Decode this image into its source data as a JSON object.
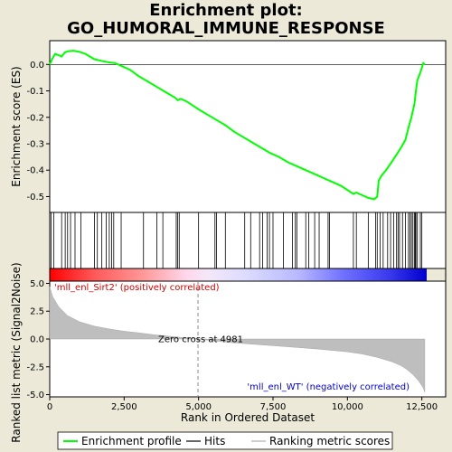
{
  "chart_data": {
    "type": "line",
    "title_line1": "Enrichment plot:",
    "title_line2": "GO_HUMORAL_IMMUNE_RESPONSE",
    "xlabel": "Rank in Ordered Dataset",
    "ylabel_top": "Enrichment score (ES)",
    "ylabel_bottom": "Ranked list metric (Signal2Noise)",
    "xlim": [
      0,
      13300
    ],
    "es_ylim": [
      -0.56,
      0.09
    ],
    "metric_ylim": [
      -5.2,
      5.2
    ],
    "x_ticks": [
      0,
      2500,
      5000,
      7500,
      10000,
      12500
    ],
    "x_tick_labels": [
      "0",
      "2,500",
      "5,000",
      "7,500",
      "10,000",
      "12,500"
    ],
    "es_ticks": [
      0.0,
      -0.1,
      -0.2,
      -0.3,
      -0.4,
      -0.5
    ],
    "es_tick_labels": [
      "0.0",
      "-0.1",
      "-0.2",
      "-0.3",
      "-0.4",
      "-0.5"
    ],
    "metric_ticks": [
      5.0,
      2.5,
      0.0,
      -2.5,
      -5.0
    ],
    "metric_tick_labels": [
      "5.0",
      "2.5",
      "0.0",
      "-2.5",
      "-5.0"
    ],
    "es_curve": {
      "x": [
        0,
        80,
        180,
        300,
        400,
        500,
        600,
        800,
        1000,
        1200,
        1500,
        1800,
        2000,
        2200,
        2400,
        2700,
        3000,
        3300,
        3600,
        3900,
        4200,
        4300,
        4400,
        4600,
        4800,
        5000,
        5300,
        5600,
        5900,
        6200,
        6500,
        6800,
        7100,
        7400,
        7700,
        8000,
        8300,
        8600,
        8900,
        9200,
        9400,
        9600,
        9800,
        10000,
        10200,
        10300,
        10500,
        10700,
        10900,
        11000,
        11050,
        11150,
        11300,
        11450,
        11600,
        11800,
        11950,
        12050,
        12150,
        12250,
        12300,
        12350,
        12450,
        12550,
        12600
      ],
      "y": [
        0.0,
        0.02,
        0.04,
        0.035,
        0.03,
        0.045,
        0.05,
        0.052,
        0.048,
        0.04,
        0.02,
        0.012,
        0.008,
        0.005,
        -0.005,
        -0.02,
        -0.045,
        -0.065,
        -0.085,
        -0.105,
        -0.125,
        -0.135,
        -0.13,
        -0.14,
        -0.155,
        -0.17,
        -0.19,
        -0.21,
        -0.23,
        -0.255,
        -0.275,
        -0.295,
        -0.315,
        -0.335,
        -0.35,
        -0.37,
        -0.385,
        -0.4,
        -0.415,
        -0.43,
        -0.44,
        -0.45,
        -0.46,
        -0.475,
        -0.49,
        -0.485,
        -0.495,
        -0.505,
        -0.51,
        -0.5,
        -0.44,
        -0.42,
        -0.4,
        -0.375,
        -0.35,
        -0.315,
        -0.285,
        -0.24,
        -0.2,
        -0.15,
        -0.1,
        -0.06,
        -0.03,
        0.005,
        0.0
      ]
    },
    "hits": [
      50,
      140,
      400,
      520,
      600,
      700,
      850,
      1050,
      1500,
      1600,
      1750,
      1900,
      2000,
      2080,
      2150,
      2400,
      3150,
      3600,
      3800,
      4250,
      4300,
      4350,
      5000,
      5550,
      5600,
      5900,
      6550,
      6750,
      7050,
      7150,
      7300,
      7380,
      7500,
      7850,
      8150,
      8250,
      8300,
      8600,
      8700,
      8900,
      9050,
      9350,
      9400,
      10200,
      10300,
      10700,
      10950,
      11000,
      11100,
      11200,
      11350,
      11450,
      11550,
      11650,
      11700,
      11750,
      11850,
      11950,
      12050,
      12100,
      12150,
      12200,
      12250,
      12280,
      12300,
      12350,
      12450,
      12500
    ],
    "metric_curve": {
      "x": [
        0,
        100,
        300,
        600,
        1000,
        1500,
        2000,
        2500,
        3000,
        3500,
        4000,
        4500,
        4981,
        5500,
        6000,
        7000,
        8000,
        9000,
        10000,
        10500,
        11000,
        11500,
        11800,
        12000,
        12200,
        12400,
        12550,
        12600
      ],
      "y": [
        4.7,
        3.8,
        2.9,
        2.1,
        1.55,
        1.15,
        0.9,
        0.7,
        0.55,
        0.38,
        0.25,
        0.12,
        0.0,
        -0.15,
        -0.3,
        -0.5,
        -0.7,
        -0.9,
        -1.15,
        -1.35,
        -1.65,
        -2.05,
        -2.4,
        -2.75,
        -3.2,
        -3.8,
        -4.4,
        -4.8
      ]
    },
    "zero_cross_label": "Zero cross at 4981",
    "zero_cross_x": 4981,
    "pos_label": "'mll_enl_Sirt2' (positively correlated)",
    "neg_label": "'mll_enl_WT' (negatively correlated)",
    "legend": {
      "placement": "bottom",
      "items": [
        {
          "label": "Enrichment profile",
          "color": "#00ff00"
        },
        {
          "label": "Hits",
          "color": "#000000"
        },
        {
          "label": "Ranking metric scores",
          "color": "#bebebe"
        }
      ]
    },
    "colors": {
      "es_line": "#00ff00",
      "metric_fill": "#bebebe",
      "pos_text": "#cc0000",
      "neg_text": "#0000cc",
      "bar_pos": "#ff0000",
      "bar_neg": "#0000ff"
    }
  }
}
